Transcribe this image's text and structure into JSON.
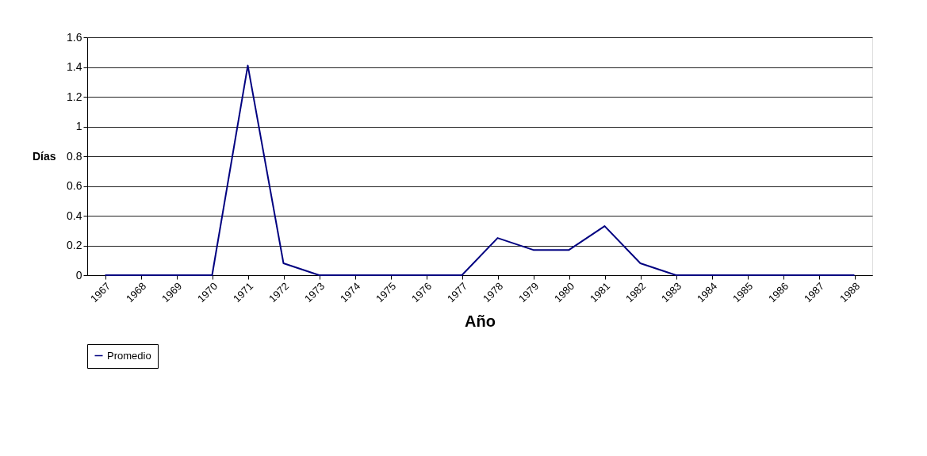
{
  "chart_data": {
    "type": "line",
    "xlabel": "Año",
    "ylabel": "Días",
    "categories": [
      "1967",
      "1968",
      "1969",
      "1970",
      "1971",
      "1972",
      "1973",
      "1974",
      "1975",
      "1976",
      "1977",
      "1978",
      "1979",
      "1980",
      "1981",
      "1982",
      "1983",
      "1984",
      "1985",
      "1986",
      "1987",
      "1988"
    ],
    "series": [
      {
        "name": "Promedio",
        "color": "#000080",
        "values": [
          0,
          0,
          0,
          0,
          1.41,
          0.08,
          0,
          0,
          0,
          0,
          0,
          0.25,
          0.17,
          0.17,
          0.33,
          0.08,
          0,
          0,
          0,
          0,
          0,
          0
        ]
      }
    ],
    "ylim": [
      0,
      1.6
    ],
    "yticks": [
      0,
      0.2,
      0.4,
      0.6,
      0.8,
      1,
      1.2,
      1.4,
      1.6
    ],
    "grid": "y",
    "legend": "bottom",
    "marker": "none",
    "line_style": "solid"
  }
}
